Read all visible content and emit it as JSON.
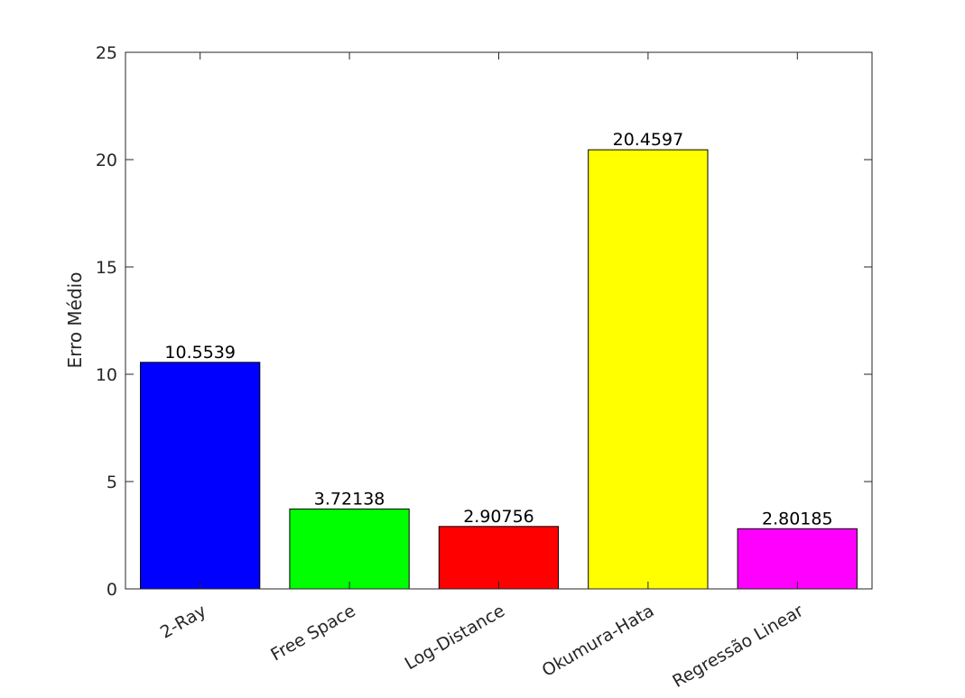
{
  "chart_data": {
    "type": "bar",
    "title": "",
    "xlabel": "",
    "ylabel": "Erro Médio",
    "categories": [
      "2-Ray",
      "Free Space",
      "Log-Distance",
      "Okumura-Hata",
      "Regressão Linear"
    ],
    "values": [
      10.5539,
      3.72138,
      2.90756,
      20.4597,
      2.80185
    ],
    "value_labels": [
      "10.5539",
      "3.72138",
      "2.90756",
      "20.4597",
      "2.80185"
    ],
    "bar_colors": [
      "#0000ff",
      "#00ff00",
      "#ff0000",
      "#ffff00",
      "#ff00ff"
    ],
    "ylim": [
      0,
      25
    ],
    "yticks": [
      0,
      5,
      10,
      15,
      20,
      25
    ],
    "ytick_labels": [
      "0",
      "5",
      "10",
      "15",
      "20",
      "25"
    ],
    "grid": false,
    "legend": "none"
  }
}
